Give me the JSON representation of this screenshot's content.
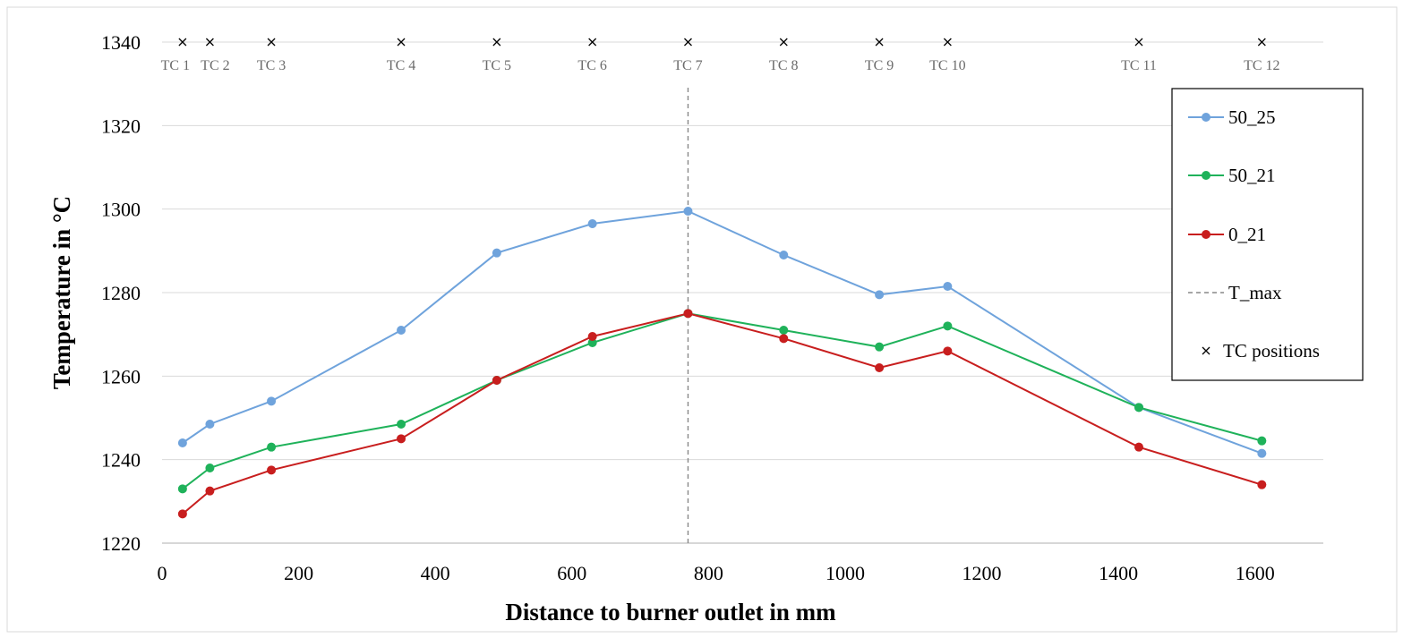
{
  "chart_data": {
    "type": "line",
    "title": "",
    "xlabel": "Distance to burner outlet in mm",
    "ylabel": "Temperature in °C",
    "xlim": [
      0,
      1700
    ],
    "ylim": [
      1220,
      1340
    ],
    "x_ticks": [
      0,
      200,
      400,
      600,
      800,
      1000,
      1200,
      1400,
      1600
    ],
    "y_ticks": [
      1220,
      1240,
      1260,
      1280,
      1300,
      1320,
      1340
    ],
    "grid": "horizontal",
    "legend_position": "right",
    "x": [
      30,
      70,
      160,
      350,
      490,
      630,
      770,
      910,
      1050,
      1150,
      1430,
      1610
    ],
    "series": [
      {
        "name": "50_25",
        "color": "#6fa3dc",
        "values": [
          1244,
          1248.5,
          1254,
          1271,
          1289.5,
          1296.5,
          1299.5,
          1289,
          1279.5,
          1281.5,
          1252.5,
          1241.5
        ]
      },
      {
        "name": "50_21",
        "color": "#1fb25a",
        "values": [
          1233,
          1238,
          1243,
          1248.5,
          1259,
          1268,
          1275,
          1271,
          1267,
          1272,
          1252.5,
          1244.5
        ]
      },
      {
        "name": "0_21",
        "color": "#c81e1e",
        "values": [
          1227,
          1232.5,
          1237.5,
          1245,
          1259,
          1269.5,
          1275,
          1269,
          1262,
          1266,
          1243,
          1234
        ]
      }
    ],
    "t_max": {
      "name": "T_max",
      "x": 770,
      "color": "#888888"
    },
    "tc_positions": {
      "name": "TC positions",
      "y": 1340,
      "labels": [
        "TC 1",
        "TC 2",
        "TC 3",
        "TC 4",
        "TC 5",
        "TC 6",
        "TC 7",
        "TC 8",
        "TC 9",
        "TC 10",
        "TC 11",
        "TC 12"
      ]
    }
  }
}
